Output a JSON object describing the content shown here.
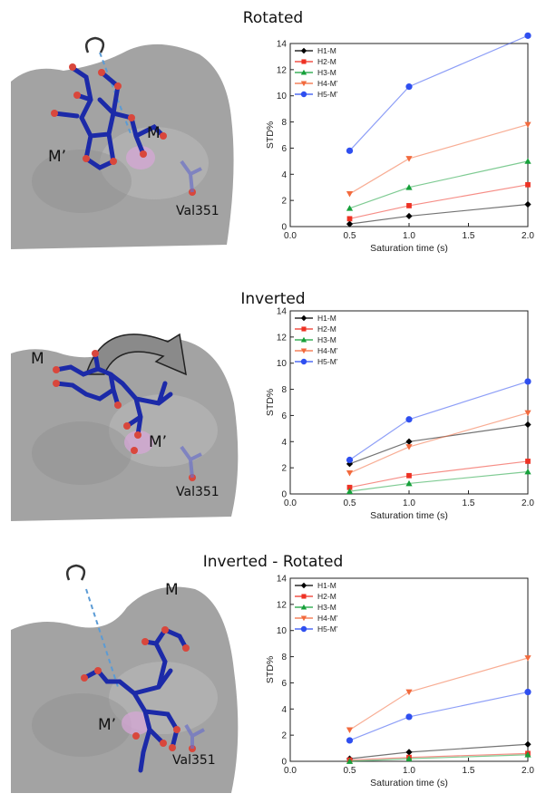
{
  "panels": [
    {
      "title": "Rotated",
      "structure_labels": {
        "a": "M’",
        "b": "M",
        "c": "Val351"
      },
      "colors": {
        "surface": "#a3a3a3",
        "ligand": "#1c2aa8",
        "oxygen": "#d9473c"
      }
    },
    {
      "title": "Inverted",
      "structure_labels": {
        "a": "M",
        "b": "M’",
        "c": "Val351"
      },
      "colors": {
        "surface": "#a3a3a3",
        "ligand": "#1c2aa8",
        "oxygen": "#d9473c"
      }
    },
    {
      "title": "Inverted - Rotated",
      "structure_labels": {
        "a": "M",
        "b": "M’",
        "c": "Val351"
      },
      "colors": {
        "surface": "#a3a3a3",
        "ligand": "#1c2aa8",
        "oxygen": "#d9473c"
      }
    }
  ],
  "chart_data": [
    {
      "type": "line",
      "xlabel": "Saturation time (s)",
      "ylabel": "STD%",
      "xlim": [
        0.0,
        2.0
      ],
      "ylim": [
        0,
        14
      ],
      "xticks": [
        "0.0",
        "0.5",
        "1.0",
        "1.5",
        "2.0"
      ],
      "yticks": [
        "0",
        "2",
        "4",
        "6",
        "8",
        "10",
        "12",
        "14"
      ],
      "legend_position": "top-left",
      "x": [
        0.5,
        1.0,
        2.0
      ],
      "series": [
        {
          "name": "H1-M",
          "values": [
            0.2,
            0.8,
            1.7
          ],
          "color": "#000000",
          "marker": "diamond"
        },
        {
          "name": "H2-M",
          "values": [
            0.6,
            1.6,
            3.2
          ],
          "color": "#ee3224",
          "marker": "square"
        },
        {
          "name": "H3-M",
          "values": [
            1.4,
            3.0,
            5.0
          ],
          "color": "#16a03a",
          "marker": "triangle-up"
        },
        {
          "name": "H4-M’",
          "values": [
            2.5,
            5.2,
            7.8
          ],
          "color": "#f26a3d",
          "marker": "triangle-down"
        },
        {
          "name": "H5-M’",
          "values": [
            5.8,
            10.7,
            14.6
          ],
          "color": "#2f4ff0",
          "marker": "circle"
        }
      ]
    },
    {
      "type": "line",
      "xlabel": "Saturation time (s)",
      "ylabel": "STD%",
      "xlim": [
        0.0,
        2.0
      ],
      "ylim": [
        0,
        14
      ],
      "xticks": [
        "0.0",
        "0.5",
        "1.0",
        "1.5",
        "2.0"
      ],
      "yticks": [
        "0",
        "2",
        "4",
        "6",
        "8",
        "10",
        "12",
        "14"
      ],
      "legend_position": "top-left",
      "x": [
        0.5,
        1.0,
        2.0
      ],
      "series": [
        {
          "name": "H1-M",
          "values": [
            2.3,
            4.0,
            5.3
          ],
          "color": "#000000",
          "marker": "diamond"
        },
        {
          "name": "H2-M",
          "values": [
            0.5,
            1.4,
            2.5
          ],
          "color": "#ee3224",
          "marker": "square"
        },
        {
          "name": "H3-M",
          "values": [
            0.2,
            0.8,
            1.7
          ],
          "color": "#16a03a",
          "marker": "triangle-up"
        },
        {
          "name": "H4-M’",
          "values": [
            1.6,
            3.6,
            6.2
          ],
          "color": "#f26a3d",
          "marker": "triangle-down"
        },
        {
          "name": "H5-M’",
          "values": [
            2.6,
            5.7,
            8.6
          ],
          "color": "#2f4ff0",
          "marker": "circle"
        }
      ]
    },
    {
      "type": "line",
      "xlabel": "Saturation time (s)",
      "ylabel": "STD%",
      "xlim": [
        0.0,
        2.0
      ],
      "ylim": [
        0,
        14
      ],
      "xticks": [
        "0.0",
        "0.5",
        "1.0",
        "1.5",
        "2.0"
      ],
      "yticks": [
        "0",
        "2",
        "4",
        "6",
        "8",
        "10",
        "12",
        "14"
      ],
      "legend_position": "top-left",
      "x": [
        0.5,
        1.0,
        2.0
      ],
      "series": [
        {
          "name": "H1-M",
          "values": [
            0.2,
            0.7,
            1.3
          ],
          "color": "#000000",
          "marker": "diamond"
        },
        {
          "name": "H2-M",
          "values": [
            0.1,
            0.3,
            0.6
          ],
          "color": "#ee3224",
          "marker": "square"
        },
        {
          "name": "H3-M",
          "values": [
            0.0,
            0.2,
            0.5
          ],
          "color": "#16a03a",
          "marker": "triangle-up"
        },
        {
          "name": "H4-M’",
          "values": [
            2.4,
            5.3,
            7.9
          ],
          "color": "#f26a3d",
          "marker": "triangle-down"
        },
        {
          "name": "H5-M’",
          "values": [
            1.6,
            3.4,
            5.3
          ],
          "color": "#2f4ff0",
          "marker": "circle"
        }
      ]
    }
  ]
}
